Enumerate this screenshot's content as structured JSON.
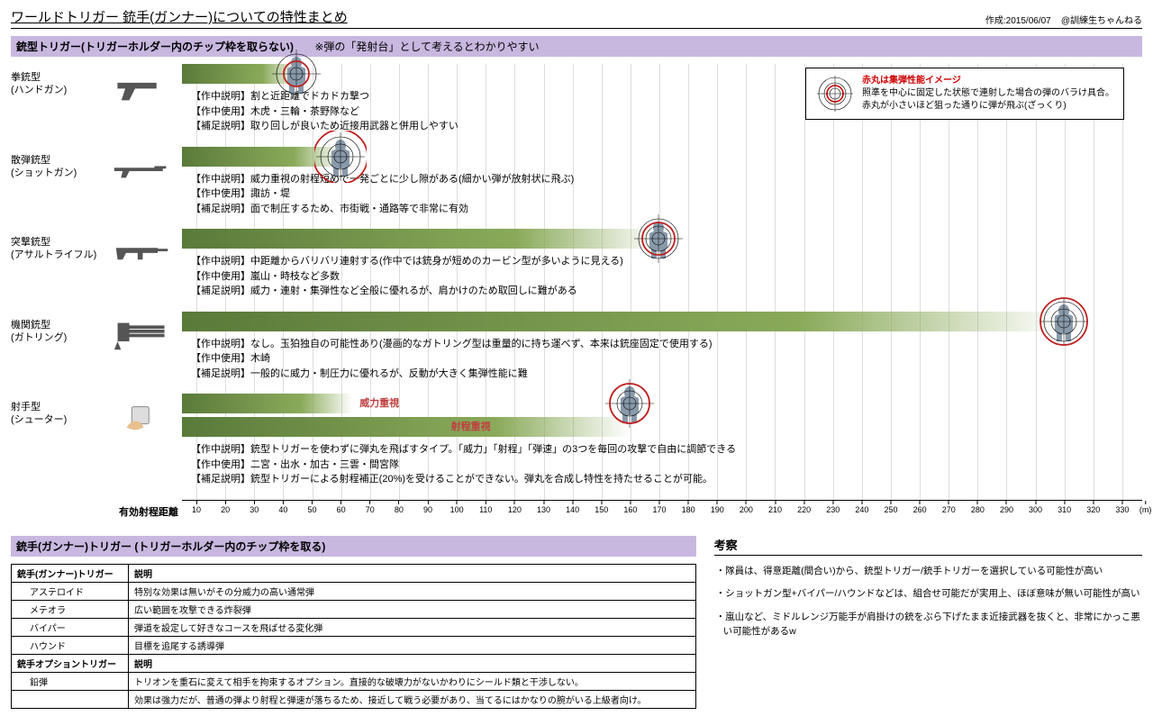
{
  "title": "ワールドトリガー 銃手(ガンナー)についての特性まとめ",
  "meta_date": "作成:2015/06/07",
  "meta_author": "@訓練生ちゃんねる",
  "section1_title": "銃型トリガー(トリガーホルダー内のチップ枠を取らない)",
  "section1_sub": "※弾の「発射台」として考えるとわかりやすい",
  "legend": {
    "l1": "赤丸は集弾性能イメージ",
    "l2": "照準を中心に固定した状態で連射した場合の弾のバラけ具合。",
    "l3": "赤丸が小さいほど狙った通りに弾が飛ぶ(ざっくり)"
  },
  "axis_label": "有効射程距離",
  "axis_unit": "(m)",
  "axis": {
    "min": 10,
    "max": 330,
    "step": 10
  },
  "colors": {
    "bar_dark": "#5a7a3a",
    "bar_light": "#8aaa5a",
    "section_bg": "#c8b8e0",
    "grid": "#dddddd",
    "red": "#c04040",
    "target_body": "#8899aa"
  },
  "weapons": [
    {
      "name1": "拳銃型",
      "name2": "(ハンドガン)",
      "range_end": 45,
      "spread": 14,
      "d1": "【作中説明】割と近距離でドカドカ撃つ",
      "d2": "【作中使用】木虎・三輪・茶野隊など",
      "d3": "【補足説明】取り回しが良いため近接用武器と併用しやすい"
    },
    {
      "name1": "散弾銃型",
      "name2": "(ショットガン)",
      "range_end": 60,
      "spread": 30,
      "d1": "【作中説明】威力重視の射程短めで一発ごとに少し隙がある(細かい弾が放射状に飛ぶ)",
      "d2": "【作中使用】諏訪・堤",
      "d3": "【補足説明】面で制圧するため、市街戦・通路等で非常に有効"
    },
    {
      "name1": "突撃銃型",
      "name2": "(アサルトライフル)",
      "range_end": 170,
      "spread": 18,
      "d1": "【作中説明】中距離からバリバリ連射する(作中では銃身が短めのカービン型が多いように見える)",
      "d2": "【作中使用】嵐山・時枝など多数",
      "d3": "【補足説明】威力・連射・集弾性など全般に優れるが、肩かけのため取回しに難がある"
    },
    {
      "name1": "機関銃型",
      "name2": "(ガトリング)",
      "range_end": 310,
      "spread": 26,
      "d1": "【作中説明】なし。玉狛独自の可能性あり(漫画的なガトリング型は重量的に持ち運べず、本来は銃座固定で使用する)",
      "d2": "【作中使用】木崎",
      "d3": "【補足説明】一般的に威力・制圧力に優れるが、反動が大きく集弾性能に難"
    },
    {
      "name1": "射手型",
      "name2": "(シューター)",
      "range_end": 160,
      "spread": 22,
      "shooter": true,
      "lab1": "威力重視",
      "lab2": "射程重視",
      "d1": "【作中説明】銃型トリガーを使わずに弾丸を飛ばすタイプ。「威力」「射程」「弾速」の3つを毎回の攻撃で自由に調節できる",
      "d2": "【作中使用】二宮・出水・加古・三雲・間宮隊",
      "d3": "【補足説明】銃型トリガーによる射程補正(20%)を受けることができない。弾丸を合成し特性を持たせることが可能。"
    }
  ],
  "section2_title": "銃手(ガンナー)トリガー (トリガーホルダー内のチップ枠を取る)",
  "table": {
    "h1": "銃手(ガンナー)トリガー",
    "h2": "説明",
    "rows": [
      [
        "アステロイド",
        "特別な効果は無いがその分威力の高い通常弾"
      ],
      [
        "メテオラ",
        "広い範囲を攻撃できる炸裂弾"
      ],
      [
        "バイパー",
        "弾道を設定して好きなコースを飛ばせる変化弾"
      ],
      [
        "ハウンド",
        "目標を追尾する誘導弾"
      ]
    ],
    "h3": "銃手オプショントリガー",
    "h4": "説明",
    "rows2": [
      [
        "鉛弾",
        "トリオンを重石に変えて相手を拘束するオプション。直接的な破壊力がないかわりにシールド類と干渉しない。"
      ],
      [
        "",
        "効果は強力だが、普通の弾より射程と弾速が落ちるため、接近して戦う必要があり、当てるにはかなりの腕がいる上級者向け。"
      ]
    ]
  },
  "notes_title": "考察",
  "notes": [
    "・隊員は、得意距離(間合い)から、銃型トリガー/銃手トリガーを選択している可能性が高い",
    "・ショットガン型+バイパー/ハウンドなどは、組合せ可能だが実用上、ほぼ意味が無い可能性が高い",
    "・嵐山など、ミドルレンジ万能手が肩掛けの銃をぶら下げたまま近接武器を抜くと、非常にかっこ悪い可能性があるw"
  ]
}
